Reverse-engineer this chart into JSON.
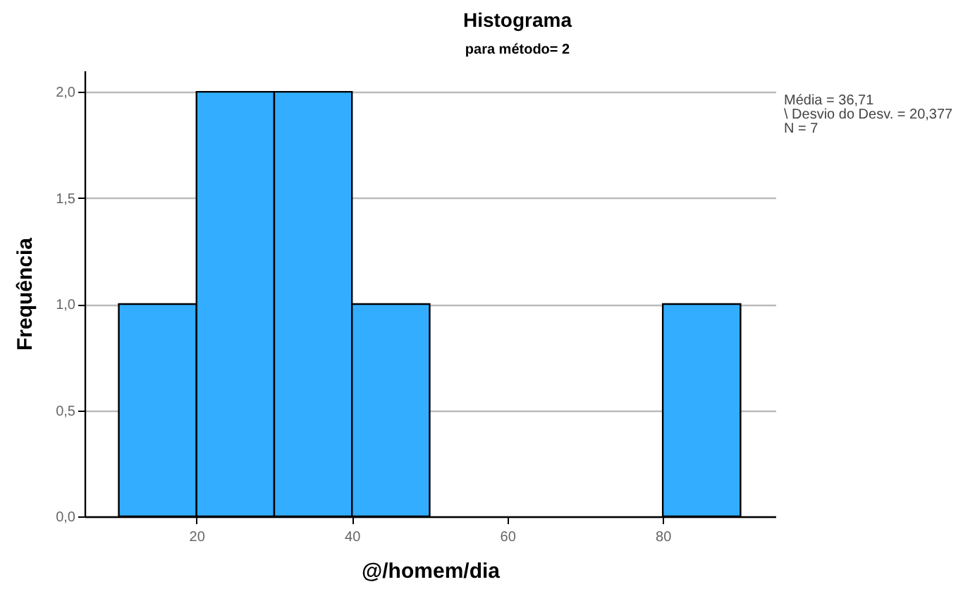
{
  "chart_data": {
    "type": "histogram",
    "title": "Histograma",
    "subtitle": "para método= 2",
    "xlabel": "@/homem/dia",
    "ylabel": "Frequência",
    "bins": [
      10,
      20,
      30,
      40,
      50,
      60,
      70,
      80,
      90
    ],
    "values": [
      1,
      2,
      2,
      1,
      0,
      0,
      0,
      1
    ],
    "color": "#33adff",
    "xlim": [
      5.6,
      94.5
    ],
    "xticks": [
      20,
      40,
      60,
      80
    ],
    "ylim": [
      0,
      2.1
    ],
    "yticks": [
      {
        "value": 0,
        "label": "0,0"
      },
      {
        "value": 0.5,
        "label": "0,5"
      },
      {
        "value": 1,
        "label": "1,0"
      },
      {
        "value": 1.5,
        "label": "1,5"
      },
      {
        "value": 2,
        "label": "2,0"
      }
    ],
    "grid": "y",
    "annotations": [
      "Média = 36,71",
      "\\ Desvio do Desv. =    20,377",
      "N = 7"
    ]
  }
}
